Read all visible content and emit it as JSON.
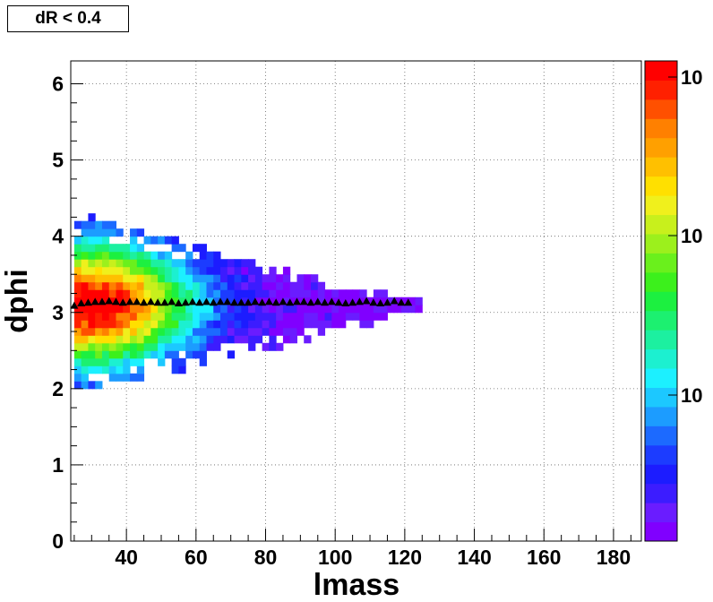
{
  "chart_data": {
    "type": "heatmap",
    "title": "dR < 0.4",
    "xlabel": "lmass",
    "ylabel": "dphi",
    "xlim": [
      24,
      188
    ],
    "ylim": [
      0,
      6.3
    ],
    "grid": true,
    "x_ticks": [
      "40",
      "60",
      "80",
      "100",
      "120",
      "140",
      "160",
      "180"
    ],
    "y_ticks": [
      "0",
      "1",
      "2",
      "3",
      "4",
      "5",
      "6"
    ],
    "colorbar": {
      "scale": "log",
      "tick_labels": [
        "10",
        "10",
        "10"
      ],
      "palette": [
        "#8000ff",
        "#6a1cff",
        "#3c1cff",
        "#1c1cff",
        "#1c3cff",
        "#1c6aff",
        "#1c9cff",
        "#1cc8ff",
        "#1cf0ff",
        "#1cf0d0",
        "#1cf0a0",
        "#1cf070",
        "#1cf040",
        "#3cf01c",
        "#6af01c",
        "#9cf01c",
        "#c8f01c",
        "#f0f01c",
        "#ffe000",
        "#ffc000",
        "#ffa000",
        "#ff8000",
        "#ff5000",
        "#ff2000",
        "#ff0000"
      ]
    },
    "heatmap": {
      "x_range": [
        25,
        125
      ],
      "y_range": [
        2.0,
        4.3
      ],
      "peak": {
        "x": 31,
        "y": 3.05
      },
      "note_series": "2D histogram counts, log color scale"
    },
    "profile": {
      "marker": "triangle-up",
      "color": "#000000",
      "x": [
        25,
        27,
        29,
        31,
        33,
        35,
        37,
        39,
        41,
        43,
        45,
        47,
        49,
        51,
        53,
        55,
        57,
        59,
        61,
        63,
        65,
        67,
        69,
        71,
        73,
        75,
        77,
        79,
        81,
        83,
        85,
        87,
        89,
        91,
        93,
        95,
        97,
        99,
        101,
        103,
        105,
        107,
        109,
        111,
        113,
        115,
        117,
        119,
        121
      ],
      "y": [
        3.09,
        3.12,
        3.13,
        3.14,
        3.14,
        3.15,
        3.14,
        3.13,
        3.14,
        3.14,
        3.13,
        3.14,
        3.13,
        3.13,
        3.14,
        3.12,
        3.13,
        3.14,
        3.13,
        3.14,
        3.13,
        3.14,
        3.14,
        3.13,
        3.13,
        3.13,
        3.14,
        3.13,
        3.14,
        3.13,
        3.14,
        3.13,
        3.14,
        3.14,
        3.13,
        3.14,
        3.13,
        3.14,
        3.13,
        3.12,
        3.13,
        3.14,
        3.15,
        3.13,
        3.12,
        3.13,
        3.15,
        3.13,
        3.13
      ]
    }
  }
}
